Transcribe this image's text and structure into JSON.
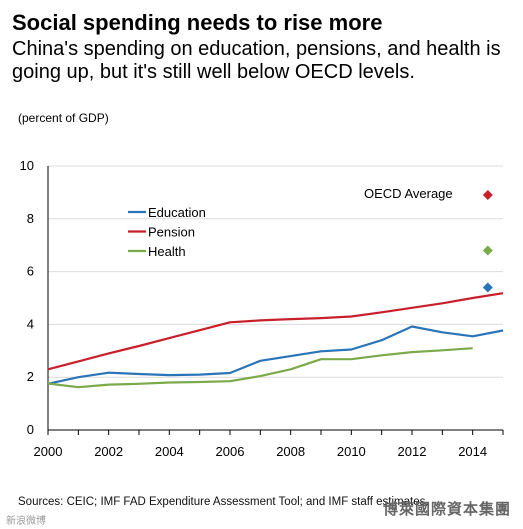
{
  "header": {
    "title": "Social spending needs to rise more",
    "subtitle": "China's spending on education, pensions, and health is going up, but it's still well below OECD levels.",
    "unit": "(percent of GDP)"
  },
  "footer": {
    "source": "Sources: CEIC; IMF FAD Expenditure Assessment Tool; and IMF staff estimates.",
    "watermark_left": "新浪微博",
    "watermark_right": "博萊國際資本集團"
  },
  "chart_data": {
    "type": "line",
    "xlim": [
      2000,
      2015
    ],
    "ylim": [
      0,
      10
    ],
    "xticks": [
      2000,
      2002,
      2004,
      2006,
      2008,
      2010,
      2012,
      2014
    ],
    "yticks": [
      0,
      2,
      4,
      6,
      8,
      10
    ],
    "grid": "horizontal",
    "legend_placement": "upper-left",
    "series": [
      {
        "name": "Education",
        "color": "#2a74b8",
        "x": [
          2000,
          2001,
          2002,
          2003,
          2004,
          2005,
          2006,
          2007,
          2008,
          2009,
          2010,
          2011,
          2012,
          2013,
          2014,
          2015
        ],
        "y": [
          1.75,
          2.0,
          2.17,
          2.12,
          2.08,
          2.1,
          2.16,
          2.62,
          2.8,
          2.98,
          3.05,
          3.4,
          3.92,
          3.7,
          3.55,
          3.77
        ]
      },
      {
        "name": "Pension",
        "color": "#c8202b",
        "x": [
          2000,
          2001,
          2002,
          2003,
          2004,
          2005,
          2006,
          2007,
          2008,
          2009,
          2010,
          2011,
          2012,
          2013,
          2014,
          2015
        ],
        "y": [
          2.3,
          2.6,
          2.9,
          3.18,
          3.48,
          3.78,
          4.08,
          4.15,
          4.2,
          4.24,
          4.3,
          4.46,
          4.63,
          4.8,
          5.0,
          5.18
        ]
      },
      {
        "name": "Health",
        "color": "#7aaa4a",
        "x": [
          2000,
          2001,
          2002,
          2003,
          2004,
          2005,
          2006,
          2007,
          2008,
          2009,
          2010,
          2011,
          2012,
          2013,
          2014
        ],
        "y": [
          1.76,
          1.62,
          1.72,
          1.75,
          1.8,
          1.82,
          1.85,
          2.04,
          2.3,
          2.68,
          2.68,
          2.83,
          2.95,
          3.02,
          3.1
        ]
      }
    ],
    "annotations": {
      "oecd_label": "OECD Average",
      "oecd_points": [
        {
          "series": "Pension",
          "x": 2014.5,
          "y": 8.9,
          "color": "#c8202b"
        },
        {
          "series": "Health",
          "x": 2014.5,
          "y": 6.8,
          "color": "#7aaa4a"
        },
        {
          "series": "Education",
          "x": 2014.5,
          "y": 5.4,
          "color": "#2a74b8"
        }
      ]
    }
  }
}
